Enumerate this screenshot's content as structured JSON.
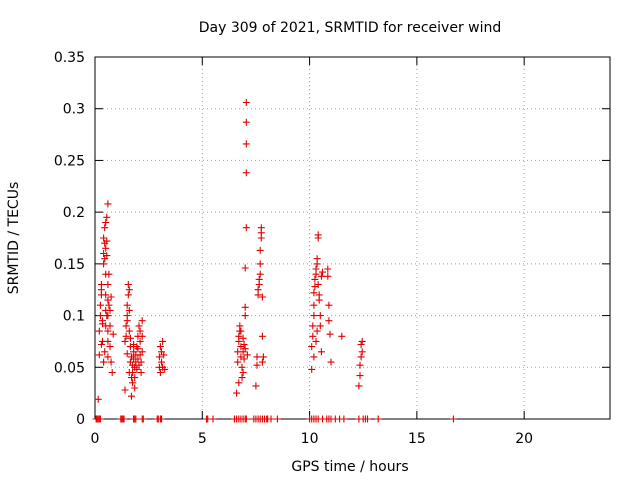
{
  "chart_data": {
    "type": "scatter",
    "title": "Day 309 of 2021, SRMTID for receiver wind",
    "xlabel": "GPS time / hours",
    "ylabel": "SRMTID / TECUs",
    "xlim": [
      0,
      24
    ],
    "ylim": [
      0,
      0.35
    ],
    "xticks": [
      0,
      5,
      10,
      15,
      20
    ],
    "xtick_labels": [
      "0",
      "5",
      "10",
      "15",
      "20"
    ],
    "yticks": [
      0,
      0.05,
      0.1,
      0.15,
      0.2,
      0.25,
      0.3,
      0.35
    ],
    "ytick_labels": [
      "0",
      "0.05",
      "0.1",
      "0.15",
      "0.2",
      "0.25",
      "0.3",
      "0.35"
    ],
    "grid": true,
    "marker": "plus",
    "marker_color": "#e00000",
    "series": [
      {
        "name": "SRMTID",
        "points": [
          [
            0.15,
            0.019
          ],
          [
            0.2,
            0.062
          ],
          [
            0.2,
            0.085
          ],
          [
            0.25,
            0.1
          ],
          [
            0.25,
            0.11
          ],
          [
            0.3,
            0.12
          ],
          [
            0.3,
            0.125
          ],
          [
            0.3,
            0.13
          ],
          [
            0.35,
            0.095
          ],
          [
            0.35,
            0.075
          ],
          [
            0.4,
            0.15
          ],
          [
            0.4,
            0.16
          ],
          [
            0.4,
            0.175
          ],
          [
            0.45,
            0.185
          ],
          [
            0.45,
            0.17
          ],
          [
            0.45,
            0.155
          ],
          [
            0.5,
            0.19
          ],
          [
            0.5,
            0.165
          ],
          [
            0.5,
            0.14
          ],
          [
            0.5,
            0.12
          ],
          [
            0.5,
            0.105
          ],
          [
            0.5,
            0.09
          ],
          [
            0.55,
            0.195
          ],
          [
            0.6,
            0.208
          ],
          [
            0.55,
            0.172
          ],
          [
            0.55,
            0.158
          ],
          [
            0.6,
            0.13
          ],
          [
            0.6,
            0.115
          ],
          [
            0.6,
            0.1
          ],
          [
            0.6,
            0.085
          ],
          [
            0.6,
            0.075
          ],
          [
            0.6,
            0.06
          ],
          [
            0.65,
            0.11
          ],
          [
            0.7,
            0.105
          ],
          [
            0.7,
            0.09
          ],
          [
            0.7,
            0.07
          ],
          [
            0.75,
            0.118
          ],
          [
            0.75,
            0.055
          ],
          [
            0.8,
            0.045
          ],
          [
            0.85,
            0.082
          ],
          [
            0.4,
            0.055
          ],
          [
            0.45,
            0.065
          ],
          [
            0.35,
            0.092
          ],
          [
            0.55,
            0.1
          ],
          [
            0.65,
            0.14
          ],
          [
            0.3,
            0.072
          ],
          [
            1.4,
            0.028
          ],
          [
            1.4,
            0.075
          ],
          [
            1.45,
            0.08
          ],
          [
            1.45,
            0.09
          ],
          [
            1.5,
            0.095
          ],
          [
            1.5,
            0.1
          ],
          [
            1.5,
            0.11
          ],
          [
            1.55,
            0.12
          ],
          [
            1.55,
            0.13
          ],
          [
            1.6,
            0.125
          ],
          [
            1.6,
            0.105
          ],
          [
            1.6,
            0.085
          ],
          [
            1.65,
            0.078
          ],
          [
            1.65,
            0.07
          ],
          [
            1.5,
            0.063
          ],
          [
            1.7,
            0.06
          ],
          [
            1.75,
            0.035
          ],
          [
            1.75,
            0.045
          ],
          [
            1.75,
            0.052
          ],
          [
            1.8,
            0.058
          ],
          [
            1.8,
            0.065
          ],
          [
            1.8,
            0.072
          ],
          [
            1.85,
            0.05
          ],
          [
            1.85,
            0.04
          ],
          [
            1.7,
            0.022
          ],
          [
            1.9,
            0.055
          ],
          [
            1.9,
            0.062
          ],
          [
            1.95,
            0.048
          ],
          [
            2.0,
            0.08
          ],
          [
            2.0,
            0.068
          ],
          [
            2.0,
            0.058
          ],
          [
            2.05,
            0.052
          ],
          [
            2.05,
            0.09
          ],
          [
            2.1,
            0.085
          ],
          [
            2.1,
            0.075
          ],
          [
            2.1,
            0.062
          ],
          [
            2.15,
            0.055
          ],
          [
            2.15,
            0.045
          ],
          [
            2.2,
            0.095
          ],
          [
            2.2,
            0.08
          ],
          [
            2.2,
            0.065
          ],
          [
            1.6,
            0.045
          ],
          [
            1.65,
            0.055
          ],
          [
            1.7,
            0.04
          ],
          [
            1.95,
            0.07
          ],
          [
            1.85,
            0.03
          ],
          [
            3.0,
            0.05
          ],
          [
            3.0,
            0.06
          ],
          [
            3.05,
            0.07
          ],
          [
            3.05,
            0.045
          ],
          [
            3.1,
            0.065
          ],
          [
            3.1,
            0.055
          ],
          [
            3.15,
            0.075
          ],
          [
            3.15,
            0.05
          ],
          [
            3.2,
            0.062
          ],
          [
            3.25,
            0.048
          ],
          [
            6.6,
            0.025
          ],
          [
            6.65,
            0.055
          ],
          [
            6.65,
            0.065
          ],
          [
            6.7,
            0.075
          ],
          [
            6.7,
            0.08
          ],
          [
            6.75,
            0.085
          ],
          [
            6.75,
            0.09
          ],
          [
            6.8,
            0.07
          ],
          [
            6.8,
            0.06
          ],
          [
            6.85,
            0.05
          ],
          [
            6.85,
            0.04
          ],
          [
            6.9,
            0.045
          ],
          [
            6.9,
            0.065
          ],
          [
            6.95,
            0.072
          ],
          [
            6.95,
            0.058
          ],
          [
            7.0,
            0.068
          ],
          [
            7.0,
            0.1
          ],
          [
            7.0,
            0.108
          ],
          [
            7.0,
            0.146
          ],
          [
            7.05,
            0.185
          ],
          [
            7.05,
            0.238
          ],
          [
            7.05,
            0.266
          ],
          [
            7.05,
            0.287
          ],
          [
            7.05,
            0.306
          ],
          [
            7.1,
            0.062
          ],
          [
            6.7,
            0.035
          ],
          [
            6.9,
            0.078
          ],
          [
            6.8,
            0.085
          ],
          [
            7.5,
            0.032
          ],
          [
            7.55,
            0.052
          ],
          [
            7.55,
            0.06
          ],
          [
            7.6,
            0.12
          ],
          [
            7.6,
            0.125
          ],
          [
            7.65,
            0.13
          ],
          [
            7.65,
            0.135
          ],
          [
            7.7,
            0.14
          ],
          [
            7.7,
            0.15
          ],
          [
            7.7,
            0.163
          ],
          [
            7.75,
            0.175
          ],
          [
            7.75,
            0.18
          ],
          [
            7.75,
            0.185
          ],
          [
            7.8,
            0.118
          ],
          [
            7.8,
            0.08
          ],
          [
            7.85,
            0.06
          ],
          [
            7.8,
            0.055
          ],
          [
            10.1,
            0.048
          ],
          [
            10.1,
            0.07
          ],
          [
            10.15,
            0.08
          ],
          [
            10.15,
            0.09
          ],
          [
            10.2,
            0.1
          ],
          [
            10.2,
            0.11
          ],
          [
            10.2,
            0.122
          ],
          [
            10.25,
            0.128
          ],
          [
            10.25,
            0.135
          ],
          [
            10.3,
            0.14
          ],
          [
            10.3,
            0.145
          ],
          [
            10.35,
            0.15
          ],
          [
            10.35,
            0.155
          ],
          [
            10.4,
            0.175
          ],
          [
            10.4,
            0.178
          ],
          [
            10.4,
            0.13
          ],
          [
            10.45,
            0.12
          ],
          [
            10.45,
            0.115
          ],
          [
            10.5,
            0.1
          ],
          [
            10.5,
            0.09
          ],
          [
            10.55,
            0.065
          ],
          [
            10.55,
            0.138
          ],
          [
            10.6,
            0.142
          ],
          [
            10.3,
            0.075
          ],
          [
            10.2,
            0.06
          ],
          [
            10.35,
            0.085
          ],
          [
            10.85,
            0.145
          ],
          [
            10.85,
            0.138
          ],
          [
            10.9,
            0.11
          ],
          [
            10.9,
            0.095
          ],
          [
            10.95,
            0.082
          ],
          [
            11.0,
            0.055
          ],
          [
            11.5,
            0.08
          ],
          [
            12.3,
            0.032
          ],
          [
            12.35,
            0.042
          ],
          [
            12.35,
            0.052
          ],
          [
            12.4,
            0.06
          ],
          [
            12.4,
            0.072
          ],
          [
            12.45,
            0.065
          ],
          [
            12.45,
            0.075
          ],
          [
            0.05,
            0
          ],
          [
            0.1,
            0
          ],
          [
            0.15,
            0
          ],
          [
            0.2,
            0
          ],
          [
            0.25,
            0
          ],
          [
            1.2,
            0
          ],
          [
            1.25,
            0
          ],
          [
            1.3,
            0
          ],
          [
            1.35,
            0
          ],
          [
            1.8,
            0
          ],
          [
            1.85,
            0
          ],
          [
            1.9,
            0
          ],
          [
            2.2,
            0
          ],
          [
            2.25,
            0
          ],
          [
            2.9,
            0
          ],
          [
            2.95,
            0
          ],
          [
            3.05,
            0
          ],
          [
            3.1,
            0
          ],
          [
            5.2,
            0
          ],
          [
            5.25,
            0
          ],
          [
            5.5,
            0
          ],
          [
            6.5,
            0
          ],
          [
            6.6,
            0
          ],
          [
            6.7,
            0
          ],
          [
            6.8,
            0
          ],
          [
            6.9,
            0
          ],
          [
            7.0,
            0
          ],
          [
            7.05,
            0
          ],
          [
            7.4,
            0
          ],
          [
            7.5,
            0
          ],
          [
            7.6,
            0
          ],
          [
            7.7,
            0
          ],
          [
            7.8,
            0
          ],
          [
            7.9,
            0
          ],
          [
            8.0,
            0
          ],
          [
            8.05,
            0
          ],
          [
            8.2,
            0
          ],
          [
            8.5,
            0
          ],
          [
            10.0,
            0
          ],
          [
            10.1,
            0
          ],
          [
            10.2,
            0
          ],
          [
            10.3,
            0
          ],
          [
            10.4,
            0
          ],
          [
            10.6,
            0
          ],
          [
            10.8,
            0
          ],
          [
            10.9,
            0
          ],
          [
            11.0,
            0
          ],
          [
            11.2,
            0
          ],
          [
            11.4,
            0
          ],
          [
            11.6,
            0
          ],
          [
            12.3,
            0
          ],
          [
            12.5,
            0
          ],
          [
            12.6,
            0
          ],
          [
            12.7,
            0
          ],
          [
            13.2,
            0
          ],
          [
            16.7,
            0
          ]
        ]
      }
    ]
  }
}
